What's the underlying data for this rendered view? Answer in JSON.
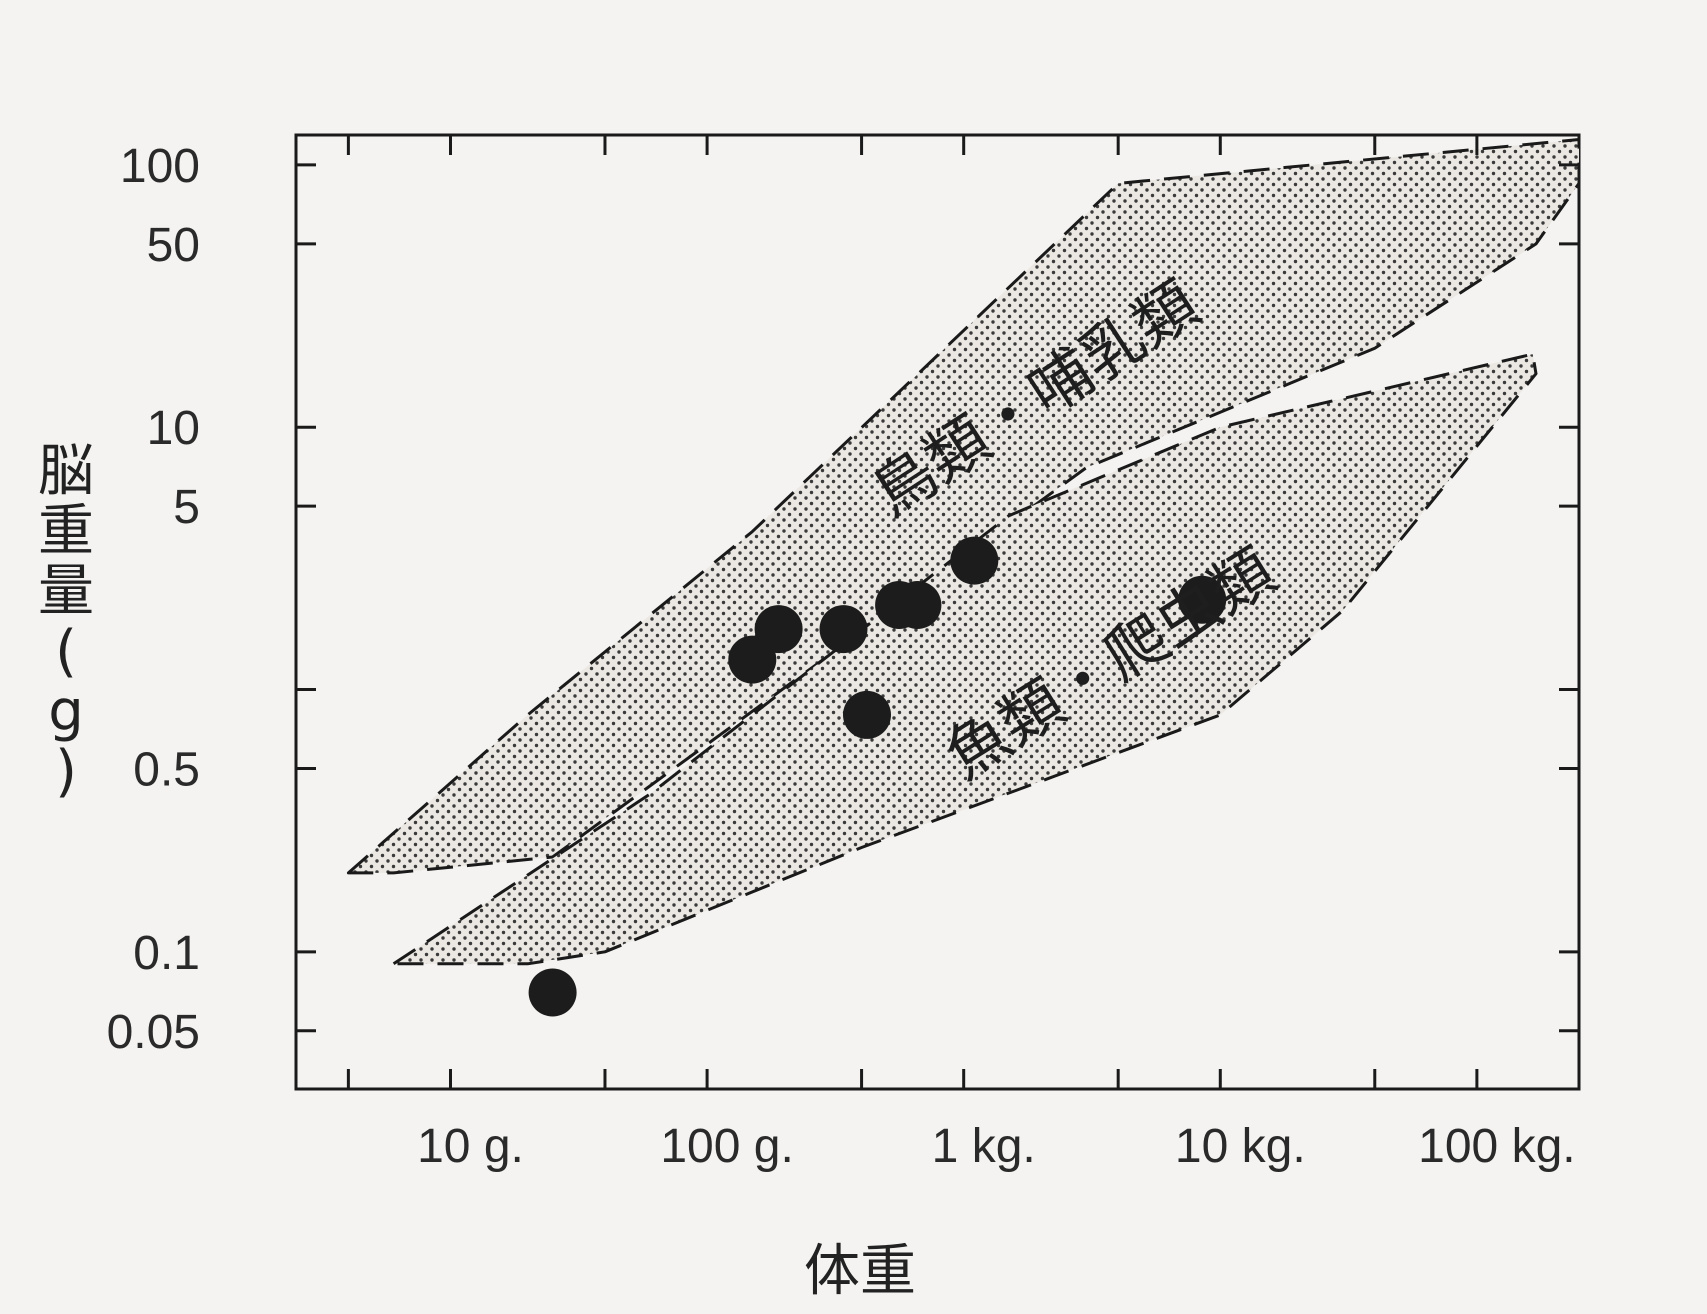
{
  "chart_data": {
    "type": "scatter",
    "title": "",
    "xlabel": "体重",
    "ylabel": "脳重量(g)",
    "x_scale": "log",
    "y_scale": "log",
    "x_unit": "g",
    "xlim": [
      2.5,
      250000
    ],
    "ylim": [
      0.03,
      130
    ],
    "x_ticks": [
      {
        "value": 10,
        "label": "10 g."
      },
      {
        "value": 100,
        "label": "100 g."
      },
      {
        "value": 1000,
        "label": "1 kg."
      },
      {
        "value": 10000,
        "label": "10 kg."
      },
      {
        "value": 100000,
        "label": "100 kg."
      }
    ],
    "y_ticks": [
      {
        "value": 100,
        "label": "100"
      },
      {
        "value": 50,
        "label": "50"
      },
      {
        "value": 10,
        "label": "10"
      },
      {
        "value": 5,
        "label": "5"
      },
      {
        "value": 0.5,
        "label": "0.5"
      },
      {
        "value": 0.1,
        "label": "0.1"
      },
      {
        "value": 0.05,
        "label": "0.05"
      }
    ],
    "grid": false,
    "legend": "none",
    "regions": [
      {
        "label": "鳥類・哺乳類",
        "polygon": [
          [
            4,
            0.2
          ],
          [
            20,
            0.8
          ],
          [
            150,
            4
          ],
          [
            4000,
            85
          ],
          [
            250000,
            125
          ],
          [
            250000,
            85
          ],
          [
            170000,
            50
          ],
          [
            40000,
            20
          ],
          [
            3000,
            7
          ],
          [
            25,
            0.23
          ],
          [
            6,
            0.2
          ]
        ]
      },
      {
        "label": "魚類・爬虫類",
        "polygon": [
          [
            6,
            0.09
          ],
          [
            60,
            0.4
          ],
          [
            1500,
            4.6
          ],
          [
            10000,
            10
          ],
          [
            165000,
            19
          ],
          [
            170000,
            16
          ],
          [
            30000,
            2
          ],
          [
            10000,
            0.8
          ],
          [
            400,
            0.25
          ],
          [
            40,
            0.1
          ],
          [
            20,
            0.09
          ]
        ]
      }
    ],
    "points": [
      {
        "x": 25,
        "y": 0.07
      },
      {
        "x": 150,
        "y": 1.3
      },
      {
        "x": 190,
        "y": 1.7
      },
      {
        "x": 340,
        "y": 1.7
      },
      {
        "x": 420,
        "y": 0.8
      },
      {
        "x": 560,
        "y": 2.1
      },
      {
        "x": 660,
        "y": 2.1
      },
      {
        "x": 1100,
        "y": 3.1
      },
      {
        "x": 8500,
        "y": 2.2
      }
    ]
  },
  "colors": {
    "background": "#f4f3f1",
    "ink": "#1a1a1a",
    "region_fill": "#e6e3de",
    "dot": "#1c1c1c"
  }
}
